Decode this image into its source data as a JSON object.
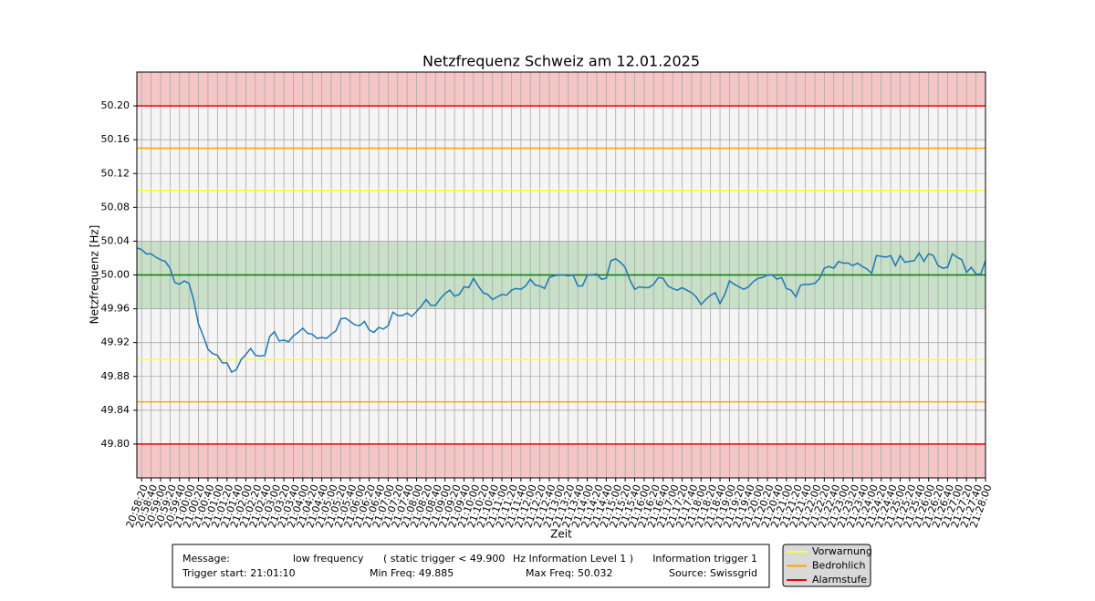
{
  "chart_data": {
    "type": "line",
    "title": "Netzfrequenz Schweiz am 12.01.2025",
    "xlabel": "Zeit",
    "ylabel": "Netzfrequenz [Hz]",
    "xlim": [
      "20:58:10",
      "21:28:00"
    ],
    "ylim": [
      49.76,
      50.24
    ],
    "yticks": [
      {
        "value": 49.8,
        "label": "49.80"
      },
      49.84,
      49.88,
      49.92,
      49.96,
      {
        "value": 50,
        "label": "50.00"
      },
      50.04,
      50.08,
      50.12,
      50.16,
      {
        "value": 50.2,
        "label": "50.20"
      }
    ],
    "xticks": [
      "20:58:20",
      "20:58:40",
      "20:59:00",
      "20:59:20",
      "20:59:40",
      "21:00:00",
      "21:00:20",
      "21:00:40",
      "21:01:00",
      "21:01:20",
      "21:01:40",
      "21:02:00",
      "21:02:20",
      "21:02:40",
      "21:03:00",
      "21:03:20",
      "21:03:40",
      "21:04:00",
      "21:04:20",
      "21:04:40",
      "21:05:00",
      "21:05:20",
      "21:05:40",
      "21:06:00",
      "21:06:20",
      "21:06:40",
      "21:07:00",
      "21:07:20",
      "21:07:40",
      "21:08:00",
      "21:08:20",
      "21:08:40",
      "21:09:00",
      "21:09:20",
      "21:09:40",
      "21:10:00",
      "21:10:20",
      "21:10:40",
      "21:11:00",
      "21:11:20",
      "21:11:40",
      "21:12:00",
      "21:12:20",
      "21:12:40",
      "21:13:00",
      "21:13:20",
      "21:13:40",
      "21:14:00",
      "21:14:20",
      "21:14:40",
      "21:15:00",
      "21:15:20",
      "21:15:40",
      "21:16:00",
      "21:16:20",
      "21:16:40",
      "21:17:00",
      "21:17:20",
      "21:17:40",
      "21:18:00",
      "21:18:20",
      "21:18:40",
      "21:19:00",
      "21:19:20",
      "21:19:40",
      "21:20:00",
      "21:20:20",
      "21:20:40",
      "21:21:00",
      "21:21:20",
      "21:21:40",
      "21:22:00",
      "21:22:20",
      "21:22:40",
      "21:23:00",
      "21:23:20",
      "21:23:40",
      "21:24:00",
      "21:24:20",
      "21:24:40",
      "21:25:00",
      "21:25:20",
      "21:25:40",
      "21:26:00",
      "21:26:20",
      "21:26:40",
      "21:27:00",
      "21:27:20",
      "21:27:40",
      "21:28:00"
    ],
    "grid": true,
    "bands": [
      {
        "range": [
          50.2,
          50.24
        ],
        "color": "#f4c6c6"
      },
      {
        "range": [
          49.76,
          49.8
        ],
        "color": "#f4c6c6"
      },
      {
        "range": [
          49.96,
          50.04
        ],
        "color": "#c8dfc8"
      }
    ],
    "reference": {
      "value": 50,
      "color": "#008000"
    },
    "thresholds": [
      {
        "name": "Vorwarnung",
        "color": "#ffff33",
        "values": [
          49.9,
          50.1
        ]
      },
      {
        "name": "Bedrohlich",
        "color": "#ffa500",
        "values": [
          49.85,
          50.15
        ]
      },
      {
        "name": "Alarmstufe",
        "color": "#ee0000",
        "values": [
          49.8,
          50.2
        ]
      }
    ],
    "series": [
      {
        "color": "#1f77b4",
        "x": [
          "20:58:10",
          "20:58:20",
          "20:58:30",
          "20:58:40",
          "20:58:50",
          "20:59:00",
          "20:59:10",
          "20:59:20",
          "20:59:30",
          "20:59:40",
          "20:59:50",
          "21:00:00",
          "21:00:10",
          "21:00:20",
          "21:00:30",
          "21:00:40",
          "21:00:50",
          "21:01:00",
          "21:01:10",
          "21:01:20",
          "21:01:30",
          "21:01:40",
          "21:01:50",
          "21:02:00",
          "21:02:10",
          "21:02:20",
          "21:02:30",
          "21:02:40",
          "21:02:50",
          "21:03:00",
          "21:03:10",
          "21:03:20",
          "21:03:30",
          "21:03:40",
          "21:03:50",
          "21:04:00",
          "21:04:10",
          "21:04:20",
          "21:04:30",
          "21:04:40",
          "21:04:50",
          "21:05:00",
          "21:05:10",
          "21:05:20",
          "21:05:30",
          "21:05:40",
          "21:05:50",
          "21:06:00",
          "21:06:10",
          "21:06:20",
          "21:06:30",
          "21:06:40",
          "21:06:50",
          "21:07:00",
          "21:07:10",
          "21:07:20",
          "21:07:30",
          "21:07:40",
          "21:07:50",
          "21:08:00",
          "21:08:10",
          "21:08:20",
          "21:08:30",
          "21:08:40",
          "21:08:50",
          "21:09:00",
          "21:09:10",
          "21:09:20",
          "21:09:30",
          "21:09:40",
          "21:09:50",
          "21:10:00",
          "21:10:10",
          "21:10:20",
          "21:10:30",
          "21:10:40",
          "21:10:50",
          "21:11:00",
          "21:11:10",
          "21:11:20",
          "21:11:30",
          "21:11:40",
          "21:11:50",
          "21:12:00",
          "21:12:10",
          "21:12:20",
          "21:12:30",
          "21:12:40",
          "21:12:50",
          "21:13:00",
          "21:13:10",
          "21:13:20",
          "21:13:30",
          "21:13:40",
          "21:13:50",
          "21:14:00",
          "21:14:10",
          "21:14:20",
          "21:14:30",
          "21:14:40",
          "21:14:50",
          "21:15:00",
          "21:15:10",
          "21:15:20",
          "21:15:30",
          "21:15:40",
          "21:15:50",
          "21:16:00",
          "21:16:10",
          "21:16:20",
          "21:16:30",
          "21:16:40",
          "21:16:50",
          "21:17:00",
          "21:17:10",
          "21:17:20",
          "21:17:30",
          "21:17:40",
          "21:17:50",
          "21:18:00",
          "21:18:10",
          "21:18:20",
          "21:18:30",
          "21:18:40",
          "21:18:50",
          "21:19:00",
          "21:19:10",
          "21:19:20",
          "21:19:30",
          "21:19:40",
          "21:19:50",
          "21:20:00",
          "21:20:10",
          "21:20:20",
          "21:20:30",
          "21:20:40",
          "21:20:50",
          "21:21:00",
          "21:21:10",
          "21:21:20",
          "21:21:30",
          "21:21:40",
          "21:21:50",
          "21:22:00",
          "21:22:10",
          "21:22:20",
          "21:22:30",
          "21:22:40",
          "21:22:50",
          "21:23:00",
          "21:23:10",
          "21:23:20",
          "21:23:30",
          "21:23:40",
          "21:23:50",
          "21:24:00",
          "21:24:10",
          "21:24:20",
          "21:24:30",
          "21:24:40",
          "21:24:50",
          "21:25:00",
          "21:25:10",
          "21:25:20",
          "21:25:30",
          "21:25:40",
          "21:25:50",
          "21:26:00",
          "21:26:10",
          "21:26:20",
          "21:26:30",
          "21:26:40",
          "21:26:50",
          "21:27:00",
          "21:27:10",
          "21:27:20",
          "21:27:30",
          "21:27:40",
          "21:27:50",
          "21:28:00"
        ],
        "values": [
          50.032,
          50.03,
          50.025,
          50.025,
          50.021,
          50.018,
          50.016,
          50.008,
          49.991,
          49.989,
          49.993,
          49.99,
          49.97,
          49.942,
          49.928,
          49.912,
          49.907,
          49.905,
          49.896,
          49.896,
          49.885,
          49.888,
          49.9,
          49.906,
          49.913,
          49.905,
          49.904,
          49.905,
          49.927,
          49.933,
          49.922,
          49.923,
          49.921,
          49.928,
          49.932,
          49.937,
          49.931,
          49.93,
          49.925,
          49.926,
          49.925,
          49.93,
          49.934,
          49.948,
          49.949,
          49.945,
          49.941,
          49.94,
          49.945,
          49.935,
          49.932,
          49.938,
          49.936,
          49.94,
          49.956,
          49.952,
          49.952,
          49.955,
          49.951,
          49.957,
          49.963,
          49.971,
          49.964,
          49.964,
          49.972,
          49.978,
          49.982,
          49.975,
          49.977,
          49.986,
          49.985,
          49.996,
          49.987,
          49.979,
          49.977,
          49.971,
          49.974,
          49.977,
          49.976,
          49.982,
          49.984,
          49.983,
          49.987,
          49.995,
          49.988,
          49.987,
          49.984,
          49.997,
          49.999,
          50.0,
          50.0,
          49.999,
          50.0,
          49.987,
          49.987,
          50.0,
          50.0,
          50.001,
          49.995,
          49.996,
          50.017,
          50.019,
          50.015,
          50.009,
          49.994,
          49.983,
          49.986,
          49.985,
          49.985,
          49.989,
          49.997,
          49.996,
          49.987,
          49.984,
          49.982,
          49.985,
          49.982,
          49.979,
          49.974,
          49.965,
          49.971,
          49.976,
          49.979,
          49.966,
          49.977,
          49.993,
          49.989,
          49.986,
          49.983,
          49.986,
          49.992,
          49.996,
          49.997,
          50.0,
          50.0,
          49.995,
          49.997,
          49.984,
          49.982,
          49.974,
          49.988,
          49.989,
          49.989,
          49.99,
          49.996,
          50.008,
          50.01,
          50.008,
          50.016,
          50.014,
          50.014,
          50.011,
          50.014,
          50.01,
          50.007,
          50.002,
          50.023,
          50.022,
          50.021,
          50.023,
          50.011,
          50.023,
          50.015,
          50.016,
          50.017,
          50.026,
          50.016,
          50.025,
          50.023,
          50.011,
          50.008,
          50.009,
          50.025,
          50.021,
          50.018,
          50.003,
          50.009,
          50.001,
          50.001,
          50.017
        ]
      }
    ]
  },
  "info_box": {
    "row1": [
      "Message:",
      "low frequency",
      "( static trigger < 49.900",
      "Hz Information Level 1 )",
      "Information trigger 1"
    ],
    "row2": [
      "Trigger start: 21:01:10",
      "Min Freq: 49.885",
      "Max Freq: 50.032",
      "Source: Swissgrid"
    ]
  }
}
